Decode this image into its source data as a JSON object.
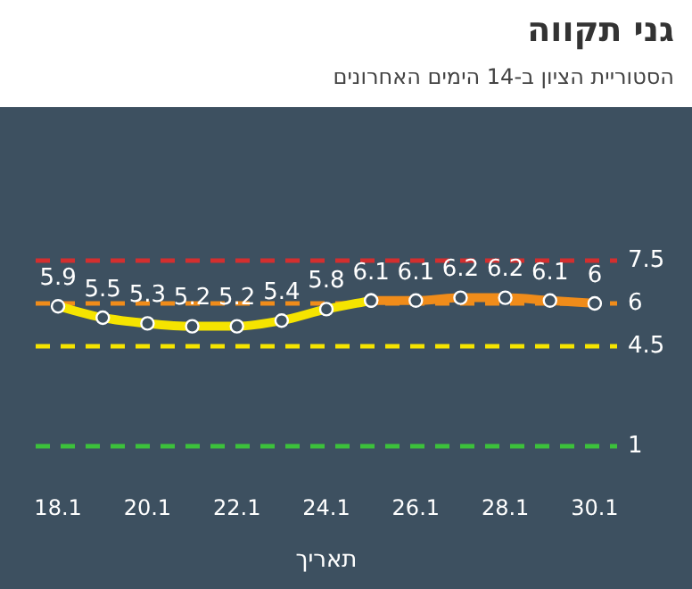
{
  "chart_data": {
    "type": "line",
    "title": "גני תקווה",
    "subtitle": "הסטוריית הציון ב-14 הימים האחרונים",
    "xlabel": "תאריך",
    "categories": [
      "18.1",
      null,
      "20.1",
      null,
      "22.1",
      null,
      "24.1",
      null,
      "26.1",
      null,
      "28.1",
      null,
      "30.1"
    ],
    "series": [
      {
        "color": "#f5e400",
        "values": [
          5.9,
          5.5,
          5.3,
          5.2,
          5.2,
          5.4,
          5.8,
          6.1,
          null,
          null,
          null,
          null,
          null
        ],
        "value_labels": [
          "5.9",
          "5.5",
          "5.3",
          "5.2",
          "5.2",
          "5.4",
          "5.8",
          "6.1",
          null,
          null,
          null,
          null,
          null
        ]
      },
      {
        "color": "#f08c1a",
        "values": [
          null,
          null,
          null,
          null,
          null,
          null,
          null,
          6.1,
          6.1,
          6.2,
          6.2,
          6.1,
          6
        ],
        "value_labels": [
          null,
          null,
          null,
          null,
          null,
          null,
          null,
          null,
          "6.1",
          "6.2",
          "6.2",
          "6.1",
          "6"
        ]
      }
    ],
    "ref_lines": [
      {
        "axis": "y",
        "value": 7.5,
        "label": "7.5",
        "color": "#d32f2f",
        "line_style": "dashed"
      },
      {
        "axis": "y",
        "value": 6,
        "label": "6",
        "color": "#f08c1a",
        "line_style": "dashed"
      },
      {
        "axis": "y",
        "value": 4.5,
        "label": "4.5",
        "color": "#f5e400",
        "line_style": "dashed"
      },
      {
        "axis": "y",
        "value": 1,
        "label": "1",
        "color": "#3cc13b",
        "line_style": "dashed"
      }
    ],
    "grid": false,
    "legend": false,
    "marker": "circle"
  }
}
